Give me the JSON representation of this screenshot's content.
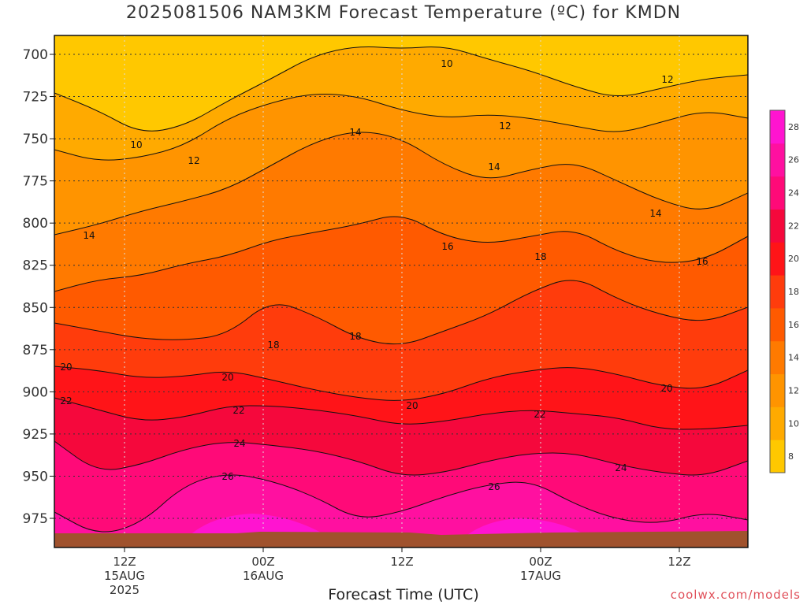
{
  "title": "2025081506 NAM3KM Forecast Temperature (ºC) for KMDN",
  "xlabel": "Forecast Time (UTC)",
  "credit": "coolwx.com/models",
  "chart_data": {
    "type": "heatmap",
    "title": "2025081506 NAM3KM Forecast Temperature (ºC) for KMDN",
    "xlabel": "Forecast Time (UTC)",
    "ylabel": "",
    "y_axis": "pressure (hPa), inverted",
    "ylim": [
      1000,
      690
    ],
    "yticks": [
      700,
      725,
      750,
      775,
      800,
      825,
      850,
      875,
      900,
      925,
      950,
      975
    ],
    "x_tick_labels": [
      {
        "hour": "12Z",
        "date": "15AUG",
        "year": "2025"
      },
      {
        "hour": "00Z",
        "date": "16AUG",
        "year": ""
      },
      {
        "hour": "12Z",
        "date": "",
        "year": ""
      },
      {
        "hour": "00Z",
        "date": "17AUG",
        "year": ""
      },
      {
        "hour": "12Z",
        "date": "",
        "year": ""
      }
    ],
    "grid": true,
    "colorbar": {
      "levels": [
        8,
        10,
        12,
        14,
        16,
        18,
        20,
        22,
        24,
        26,
        28
      ],
      "colors": [
        "#ffc800",
        "#ffaa00",
        "#ff9400",
        "#ff7a00",
        "#ff5a00",
        "#ff3c0c",
        "#ff1418",
        "#f5083c",
        "#ff0a78",
        "#ff10a0",
        "#ff14d0"
      ]
    },
    "contours": [
      {
        "value": 10,
        "pressure_approx": [
          {
            "time": "12Z 15AUG",
            "p": 735
          },
          {
            "time": "00Z 17AUG",
            "p": 698
          }
        ]
      },
      {
        "value": 12,
        "pressure_approx": [
          {
            "time": "12Z 15AUG",
            "p": 752
          },
          {
            "time": "00Z 17AUG",
            "p": 735
          },
          {
            "time": "12Z 17AUG",
            "p": 712
          }
        ]
      },
      {
        "value": 14,
        "pressure_approx": [
          {
            "time": "12Z 15AUG",
            "p": 798
          },
          {
            "time": "00Z 16AUG",
            "p": 780
          },
          {
            "time": "00Z 17AUG",
            "p": 760
          },
          {
            "time": "12Z 17AUG",
            "p": 790
          }
        ]
      },
      {
        "value": 16,
        "pressure_approx": [
          {
            "time": "00Z 16AUG",
            "p": 825
          },
          {
            "time": "12Z 16AUG",
            "p": 800
          },
          {
            "time": "12Z 17AUG",
            "p": 820
          }
        ]
      },
      {
        "value": 18,
        "pressure_approx": [
          {
            "time": "00Z 16AUG",
            "p": 855
          },
          {
            "time": "12Z 16AUG",
            "p": 875
          },
          {
            "time": "00Z 17AUG",
            "p": 830
          }
        ]
      },
      {
        "value": 20,
        "pressure_approx": [
          {
            "time": "12Z 15AUG",
            "p": 885
          },
          {
            "time": "12Z 16AUG",
            "p": 905
          },
          {
            "time": "12Z 17AUG",
            "p": 890
          }
        ]
      },
      {
        "value": 22,
        "pressure_approx": [
          {
            "time": "12Z 15AUG",
            "p": 915
          },
          {
            "time": "12Z 16AUG",
            "p": 935
          },
          {
            "time": "00Z 17AUG",
            "p": 910
          }
        ]
      },
      {
        "value": 24,
        "pressure_approx": [
          {
            "time": "00Z 16AUG",
            "p": 930
          },
          {
            "time": "12Z 17AUG",
            "p": 945
          }
        ]
      },
      {
        "value": 26,
        "pressure_approx": [
          {
            "time": "00Z 16AUG",
            "p": 955
          },
          {
            "time": "00Z 17AUG",
            "p": 962
          }
        ]
      }
    ],
    "contour_labels": [
      "10",
      "10",
      "12",
      "12",
      "12",
      "14",
      "14",
      "14",
      "14",
      "16",
      "16",
      "18",
      "18",
      "18",
      "20",
      "20",
      "20",
      "20",
      "22",
      "22",
      "22",
      "24",
      "24",
      "26",
      "26"
    ]
  }
}
